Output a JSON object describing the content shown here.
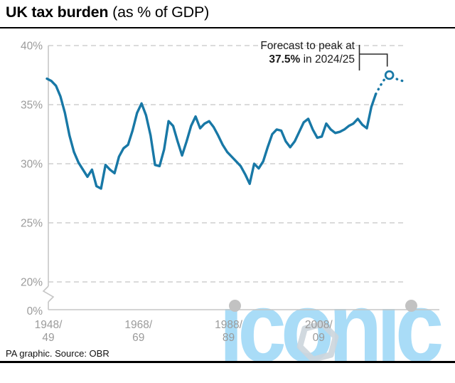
{
  "header": {
    "title_bold": "UK tax burden",
    "title_rest": " (as % of GDP)"
  },
  "annotation": {
    "line1": "Forecast to peak at",
    "peak_value": "37.5%",
    "line2_rest": " in 2024/25"
  },
  "footer": {
    "credit": "PA graphic. Source: OBR"
  },
  "watermark": {
    "text": "iconic"
  },
  "colors": {
    "line": "#1878a6",
    "grid": "#cfcfcf",
    "axis": "#c6c6c6",
    "axis_label": "#9b9b9b",
    "connector": "#2b2b2b",
    "watermark_text": "#a9dcf7",
    "watermark_dot": "#c2c2c2",
    "hexagon": "#ccd5dc"
  },
  "chart_data": {
    "type": "line",
    "title": "UK tax burden (as % of GDP)",
    "ylabel": "% of GDP",
    "grid": "dashed-horizontal",
    "legend": false,
    "x_axis": {
      "tick_years": [
        1948,
        1968,
        1988,
        2008
      ],
      "tick_labels": [
        [
          "1948/",
          "49"
        ],
        [
          "1968/",
          "69"
        ],
        [
          "1988/",
          "89"
        ],
        [
          "2008/",
          "09"
        ]
      ]
    },
    "y_axis": {
      "ticks": [
        {
          "label": "40%",
          "value": 40
        },
        {
          "label": "35%",
          "value": 35
        },
        {
          "label": "30%",
          "value": 30
        },
        {
          "label": "25%",
          "value": 25
        },
        {
          "label": "20%",
          "value": 20
        },
        {
          "label": "0%",
          "value": 0
        }
      ],
      "axis_break_between": [
        20,
        0
      ]
    },
    "series": [
      {
        "name": "UK tax burden (% of GDP)",
        "start_year": 1948,
        "values": [
          37.2,
          37.0,
          36.6,
          35.7,
          34.3,
          32.4,
          31.0,
          30.1,
          29.5,
          28.9,
          29.5,
          28.1,
          27.9,
          29.9,
          29.5,
          29.2,
          30.6,
          31.3,
          31.6,
          32.8,
          34.3,
          35.1,
          34.1,
          32.4,
          29.9,
          29.8,
          31.2,
          33.6,
          33.2,
          31.9,
          30.7,
          31.9,
          33.2,
          34.0,
          33.0,
          33.4,
          33.6,
          33.1,
          32.4,
          31.6,
          31.0,
          30.6,
          30.2,
          29.8,
          29.1,
          28.3,
          30.0,
          29.6,
          30.2,
          31.4,
          32.5,
          32.9,
          32.8,
          31.9,
          31.4,
          31.9,
          32.7,
          33.5,
          33.8,
          32.9,
          32.2,
          32.3,
          33.4,
          32.9,
          32.6,
          32.7,
          32.9,
          33.2,
          33.4,
          33.8,
          33.3,
          33.0,
          34.8,
          35.9,
          36.6,
          37.2,
          37.5,
          37.3,
          37.1,
          37.0
        ],
        "forecast_from_year": 2021,
        "peak_marker": {
          "year": 2024,
          "value": 37.5,
          "fiscal_label": "2024/25"
        }
      }
    ]
  }
}
